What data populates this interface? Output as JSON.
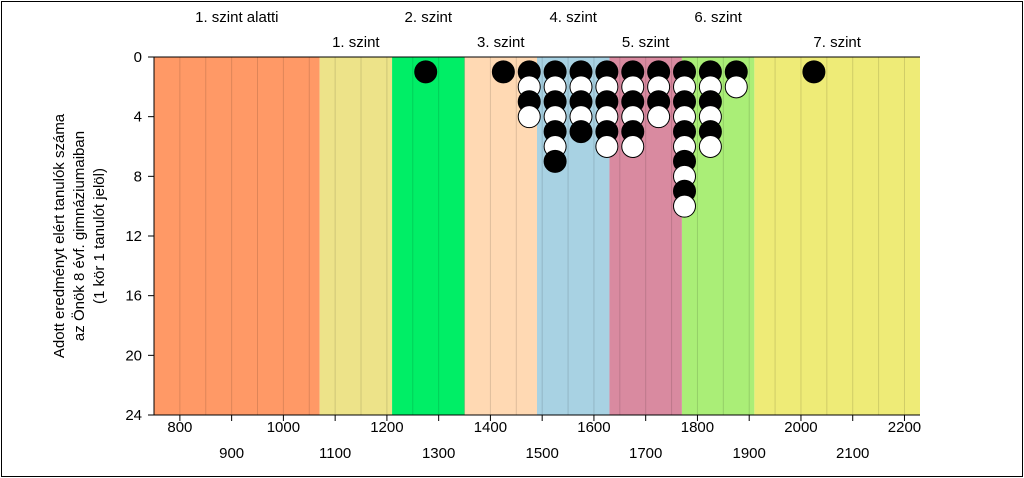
{
  "chart_data": {
    "type": "scatter",
    "title": "",
    "ylabel_lines": [
      "Adott eredményt elért tanulók száma",
      "az Önök 8 évf. gimnáziumaiban",
      "(1 kör 1 tanulót jelöl)"
    ],
    "xlim": [
      750,
      2230
    ],
    "ylim": [
      0,
      24
    ],
    "y_inverted": true,
    "x_ticks_top_row": [
      800,
      1000,
      1200,
      1400,
      1600,
      1800,
      2000,
      2200
    ],
    "x_ticks_bottom_row": [
      900,
      1100,
      1300,
      1500,
      1700,
      1900,
      2100
    ],
    "y_ticks": [
      0,
      4,
      8,
      12,
      16,
      20,
      24
    ],
    "grid_step": 50,
    "bands": [
      {
        "label": "1. szint alatti",
        "from": 750,
        "to": 1070,
        "color": "#ff9966",
        "label_row": "top"
      },
      {
        "label": "1. szint",
        "from": 1070,
        "to": 1210,
        "color": "#ede389",
        "label_row": "bottom"
      },
      {
        "label": "2. szint",
        "from": 1210,
        "to": 1350,
        "color": "#00ee66",
        "label_row": "top"
      },
      {
        "label": "3. szint",
        "from": 1350,
        "to": 1490,
        "color": "#ffd9b3",
        "label_row": "bottom"
      },
      {
        "label": "4. szint",
        "from": 1490,
        "to": 1630,
        "color": "#a8d2e3",
        "label_row": "top"
      },
      {
        "label": "5. szint",
        "from": 1630,
        "to": 1770,
        "color": "#d98aa0",
        "label_row": "bottom"
      },
      {
        "label": "6. szint",
        "from": 1770,
        "to": 1910,
        "color": "#aaee77",
        "label_row": "top"
      },
      {
        "label": "7. szint",
        "from": 1910,
        "to": 2230,
        "color": "#eeeb77",
        "label_row": "bottom"
      }
    ],
    "columns": [
      {
        "x": 1275,
        "count": 1
      },
      {
        "x": 1425,
        "count": 1
      },
      {
        "x": 1475,
        "count": 4
      },
      {
        "x": 1525,
        "count": 7
      },
      {
        "x": 1575,
        "count": 5
      },
      {
        "x": 1625,
        "count": 6
      },
      {
        "x": 1675,
        "count": 6
      },
      {
        "x": 1725,
        "count": 4
      },
      {
        "x": 1775,
        "count": 10
      },
      {
        "x": 1825,
        "count": 6
      },
      {
        "x": 1875,
        "count": 2
      },
      {
        "x": 2025,
        "count": 1
      }
    ],
    "marker_colors": [
      "#000000",
      "#ffffff"
    ]
  }
}
